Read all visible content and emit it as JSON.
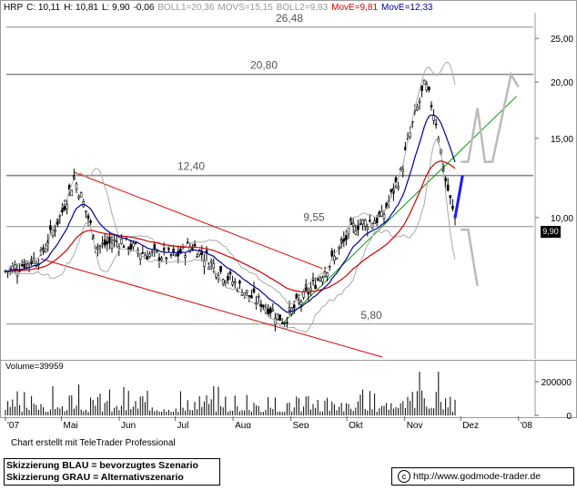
{
  "header": {
    "symbol": "HRP",
    "close": "C: 10,11",
    "high": "H: 10,81",
    "low": "L: 9,90",
    "change": "-0,06",
    "boll1": "BOLL1=20,36",
    "movs": "MOVS=15,15",
    "boll2": "BOLL2=9,93",
    "move_red": "MovE=9,81",
    "move_blue": "MovE=12,33",
    "colors": {
      "symbol": "#000000",
      "ohlc": "#000000",
      "boll": "#999999",
      "move_red": "#cc0000",
      "move_blue": "#000099"
    }
  },
  "price_tag": "9,90",
  "volume_label": "Volume=39959",
  "footer_credit": "Chart erstellt mit TeleTrader Professional",
  "legend": {
    "blue": "Skizzierung BLAU = bevorzugtes Szenario",
    "grey": "Skizzierung GRAU = Alternativszenario"
  },
  "url": "http://www.godmode-trader.de",
  "chart_data": [
    {
      "type": "candlestick",
      "title": "",
      "x_axis": {
        "labels": [
          "'07",
          "Mai",
          "Jun",
          "Jul",
          "Aug",
          "Sep",
          "Okt",
          "Nov",
          "Dez",
          "'08"
        ]
      },
      "y_axis": {
        "scale": "log",
        "ticks": [
          10,
          15,
          20,
          25
        ],
        "tick_labels": [
          "10,00",
          "15,00",
          "20,00",
          "25,00"
        ],
        "ylim": [
          4.9,
          28.5
        ]
      },
      "horizontal_levels": [
        {
          "value": 26.48,
          "label": "26,48"
        },
        {
          "value": 20.8,
          "label": "20,80"
        },
        {
          "value": 12.4,
          "label": "12,40"
        },
        {
          "value": 9.55,
          "label": "9,55"
        },
        {
          "value": 5.8,
          "label": "5,80"
        }
      ],
      "approx_close_path": [
        {
          "x": "Apr 1",
          "y": 7.6
        },
        {
          "x": "Apr 20",
          "y": 8.2
        },
        {
          "x": "Mai 1",
          "y": 10.2
        },
        {
          "x": "Mai 8",
          "y": 12.2
        },
        {
          "x": "Mai 20",
          "y": 8.6
        },
        {
          "x": "Jun 1",
          "y": 8.9
        },
        {
          "x": "Jun 15",
          "y": 8.3
        },
        {
          "x": "Jul 1",
          "y": 8.2
        },
        {
          "x": "Jul 10",
          "y": 8.7
        },
        {
          "x": "Jul 25",
          "y": 7.6
        },
        {
          "x": "Aug 10",
          "y": 6.7
        },
        {
          "x": "Aug 20",
          "y": 6.3
        },
        {
          "x": "Aug 28",
          "y": 5.9
        },
        {
          "x": "Sep 10",
          "y": 6.8
        },
        {
          "x": "Sep 25",
          "y": 8.2
        },
        {
          "x": "Okt 5",
          "y": 9.6
        },
        {
          "x": "Okt 20",
          "y": 10.0
        },
        {
          "x": "Okt 30",
          "y": 12.5
        },
        {
          "x": "Nov 5",
          "y": 16.0
        },
        {
          "x": "Nov 12",
          "y": 19.8
        },
        {
          "x": "Nov 18",
          "y": 16.3
        },
        {
          "x": "Nov 22",
          "y": 12.5
        },
        {
          "x": "Nov 27",
          "y": 10.2
        },
        {
          "x": "Nov 28",
          "y": 10.11
        }
      ],
      "series": [
        {
          "name": "MovE=9,81",
          "color": "#cc0000"
        },
        {
          "name": "MovE=12,33",
          "color": "#000099"
        },
        {
          "name": "BOLL1=20,36",
          "color": "#999999"
        },
        {
          "name": "BOLL2=9,93",
          "color": "#999999"
        }
      ],
      "scenario_colors": {
        "blue": "#1a1aff",
        "grey": "#bbbbbb"
      }
    },
    {
      "type": "bar",
      "title": "Volume=39959",
      "y_axis": {
        "ticks": [
          0,
          200000
        ],
        "tick_labels": [
          "0",
          "200000"
        ]
      }
    }
  ]
}
